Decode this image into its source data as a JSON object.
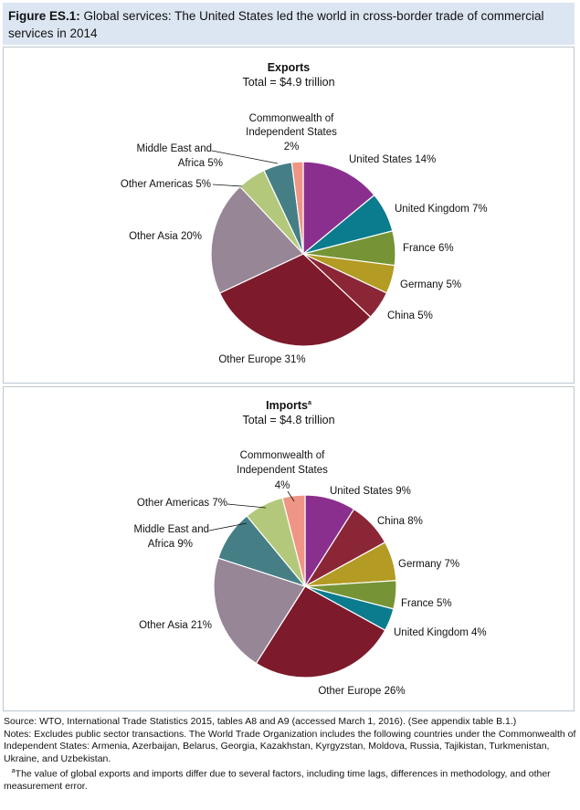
{
  "figure": {
    "label": "Figure ES.1:",
    "caption": "Global services: The United States led the world in cross-border trade of commercial services in 2014"
  },
  "colors": {
    "header_bg": "#dce6f2",
    "united_states": "#8b2f8e",
    "united_kingdom": "#0b7b8e",
    "france": "#769436",
    "germany": "#b39b24",
    "china": "#8b2636",
    "other_europe": "#7d1a2c",
    "other_asia": "#968696",
    "other_americas": "#b3c87a",
    "middle_east_africa": "#457f85",
    "cis": "#ef9585"
  },
  "chart_data": [
    {
      "type": "pie",
      "title": "Exports",
      "subtitle": "Total = $4.9 trillion",
      "slices": [
        {
          "label": "United States 14%",
          "value": 14,
          "color": "#8b2f8e"
        },
        {
          "label": "United Kingdom 7%",
          "value": 7,
          "color": "#0b7b8e"
        },
        {
          "label": "France 6%",
          "value": 6,
          "color": "#769436"
        },
        {
          "label": "Germany 5%",
          "value": 5,
          "color": "#b39b24"
        },
        {
          "label": "China 5%",
          "value": 5,
          "color": "#8b2636"
        },
        {
          "label": "Other Europe 31%",
          "value": 31,
          "color": "#7d1a2c"
        },
        {
          "label": "Other Asia 20%",
          "value": 20,
          "color": "#968696"
        },
        {
          "label": "Other Americas 5%",
          "value": 5,
          "color": "#b3c87a"
        },
        {
          "label": "Middle East and Africa 5%",
          "value": 5,
          "color": "#457f85"
        },
        {
          "label": "Commonwealth of Independent States 2%",
          "value": 2,
          "color": "#ef9585"
        }
      ]
    },
    {
      "type": "pie",
      "title": "Imports",
      "title_note": "a",
      "subtitle": "Total = $4.8 trillion",
      "slices": [
        {
          "label": "United States 9%",
          "value": 9,
          "color": "#8b2f8e"
        },
        {
          "label": "China 8%",
          "value": 8,
          "color": "#8b2636"
        },
        {
          "label": "Germany 7%",
          "value": 7,
          "color": "#b39b24"
        },
        {
          "label": "France 5%",
          "value": 5,
          "color": "#769436"
        },
        {
          "label": "United Kingdom 4%",
          "value": 4,
          "color": "#0b7b8e"
        },
        {
          "label": "Other Europe 26%",
          "value": 26,
          "color": "#7d1a2c"
        },
        {
          "label": "Other Asia 21%",
          "value": 21,
          "color": "#968696"
        },
        {
          "label": "Middle East and Africa 9%",
          "value": 9,
          "color": "#457f85"
        },
        {
          "label": "Other Americas 7%",
          "value": 7,
          "color": "#b3c87a"
        },
        {
          "label": "Commonwealth of Independent States 4%",
          "value": 4,
          "color": "#ef9585"
        }
      ]
    }
  ],
  "notes": {
    "source": "Source: WTO, International Trade Statistics 2015, tables A8 and A9 (accessed March 1, 2016). (See appendix table B.1.)",
    "notes": "Notes: Excludes public sector transactions. The World Trade Organization includes the following countries under the Commonwealth of Independent States: Armenia, Azerbaijan, Belarus, Georgia, Kazakhstan, Kyrgyzstan, Moldova, Russia, Tajikistan, Turkmenistan, Ukraine, and Uzbekistan.",
    "footnote_marker": "a",
    "footnote": "The value of global exports and imports differ due to several factors, including time lags, differences in methodology, and other measurement error."
  }
}
